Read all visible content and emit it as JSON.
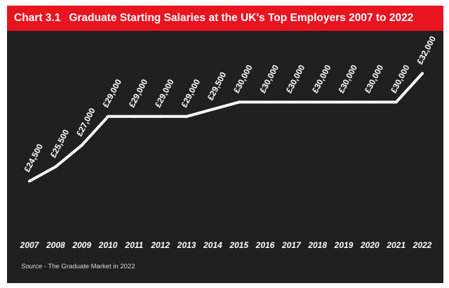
{
  "header": {
    "label": "Chart 3.1",
    "title": "Graduate Starting Salaries at the UK's Top Employers 2007 to 2022"
  },
  "source": {
    "label": "Source",
    "text": " - The Graduate Market in 2022"
  },
  "colors": {
    "header_bg": "#e8141f",
    "panel_bg": "#221f20",
    "line": "#ffffff",
    "text": "#ffffff"
  },
  "chart_data": {
    "type": "line",
    "x": [
      "2007",
      "2008",
      "2009",
      "2010",
      "2011",
      "2012",
      "2013",
      "2014",
      "2015",
      "2016",
      "2017",
      "2018",
      "2019",
      "2020",
      "2021",
      "2022"
    ],
    "series": [
      {
        "values": [
          24500,
          25500,
          27000,
          29000,
          29000,
          29000,
          29000,
          29500,
          30000,
          30000,
          30000,
          30000,
          30000,
          30000,
          30000,
          32000
        ]
      }
    ],
    "data_labels": [
      "£24,500",
      "£25,500",
      "£27,000",
      "£29,000",
      "£29,000",
      "£29,000",
      "£29,000",
      "£29,500",
      "£30,000",
      "£30,000",
      "£30,000",
      "£30,000",
      "£30,000",
      "£30,000",
      "£30,000",
      "£32,000"
    ],
    "ylim": [
      22000,
      33000
    ],
    "grid": false,
    "legend": "none",
    "title": "",
    "xlabel": "",
    "ylabel": ""
  }
}
